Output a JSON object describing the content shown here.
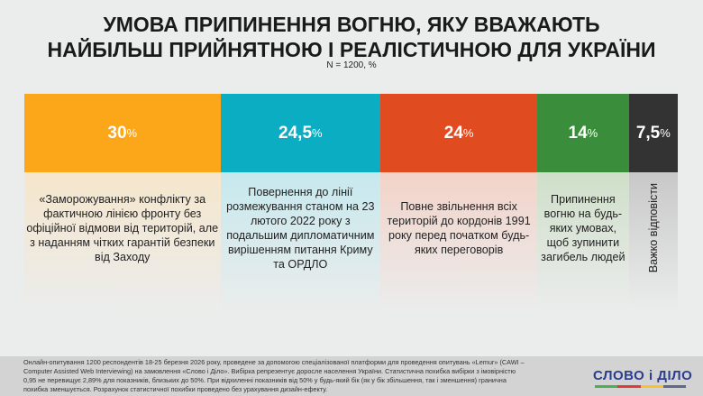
{
  "title_line1": "УМОВА ПРИПИНЕННЯ ВОГНЮ, ЯКУ ВВАЖАЮТЬ",
  "title_line2": "НАЙБІЛЬШ ПРИЙНЯТНОЮ І РЕАЛІСТИЧНОЮ ДЛЯ УКРАЇНИ",
  "subtitle": "N = 1200, %",
  "chart_data": {
    "type": "bar",
    "stacked": true,
    "orientation": "horizontal",
    "title": "УМОВА ПРИПИНЕННЯ ВОГНЮ, ЯКУ ВВАЖАЮТЬ НАЙБІЛЬШ ПРИЙНЯТНОЮ І РЕАЛІСТИЧНОЮ ДЛЯ УКРАЇНИ",
    "subtitle": "N = 1200, %",
    "categories": [
      {
        "label": "«Заморожування» конфлікту за фактичною лінією фронту без офіційної відмови від територій, але з наданням чітких гарантій безпеки від Заходу",
        "value": 30,
        "value_label": "30",
        "color": "#fca61a",
        "tint": "#f6e6cc"
      },
      {
        "label": "Повернення до лінії розмежування станом на 23 лютого 2022 року з подальшим дипломатичним вирішенням питання Криму та ОРДЛО",
        "value": 24.5,
        "value_label": "24,5",
        "color": "#0aadc2",
        "tint": "#c6e9ee"
      },
      {
        "label": "Повне звільнення всіх територій до кордонів 1991 року перед початком будь-яких переговорів",
        "value": 24,
        "value_label": "24",
        "color": "#e04b20",
        "tint": "#f2d3c9"
      },
      {
        "label": "Припинення вогню на будь-яких умовах, щоб зупинити загибель людей",
        "value": 14,
        "value_label": "14",
        "color": "#3a8d3a",
        "tint": "#cfdfc9"
      },
      {
        "label": "Важко відповісти",
        "value": 7.5,
        "value_label": "7,5",
        "color": "#333333",
        "tint": "#c8c8c8"
      }
    ],
    "unit": "%"
  },
  "footer": {
    "note": "Онлайн-опитування 1200 респондентів 18-25 березня 2026 року, проведене за допомогою спеціалізованої платформи для проведення опитувань «Lemur» (CAWI – Computer Assisted Web Interviewing) на замовлення «Слово і Діло». Вибірка репрезентує доросле населення України. Статистична похибка вибірки з імовірністю 0,95 не перевищує 2,89% для показників, близьких до 50%. При відхиленні показників від 50% у будь-який бік (як у бік збільшення, так і зменшення) гранична похибка зменшується. Розрахунок статистичної похибки проведено без урахування дизайн-ефекту.",
    "logo": "СЛОВО і ДІЛО"
  }
}
